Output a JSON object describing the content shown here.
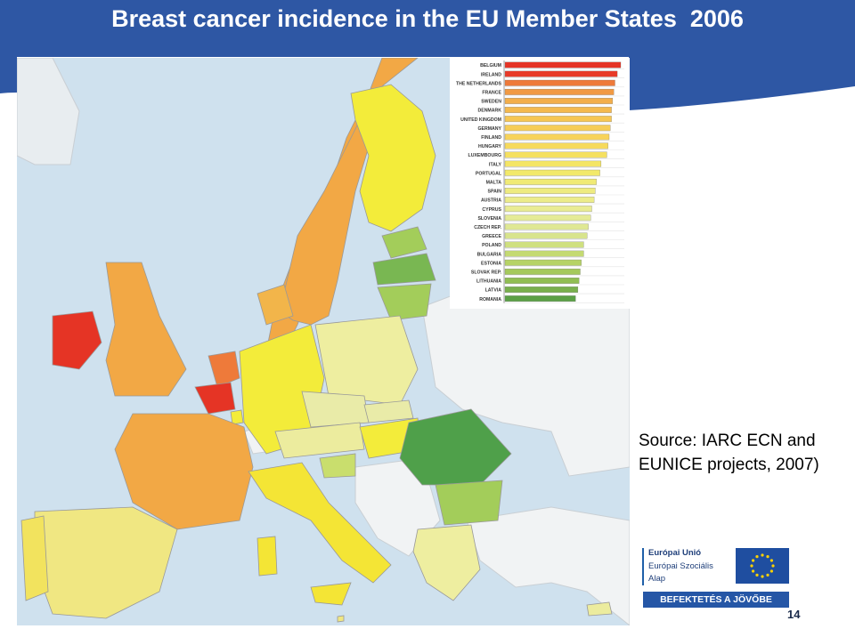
{
  "slide": {
    "title": "Breast cancer incidence in the EU Member States  2006",
    "source": "Source: IARC ECN and EUNICE projects, 2007)",
    "page_number": "14"
  },
  "logo": {
    "line1": "Európai Unió",
    "line2": "Európai Szociális",
    "line3": "Alap",
    "slogan": "BEFEKTETÉS A JÖVŐBE",
    "flag_icon": "eu-flag-icon"
  },
  "colors": {
    "banner": "#2e57a4",
    "map_water": "#cfe1ee",
    "non_eu_land": "#f1f3f4"
  },
  "chart_data": {
    "type": "bar",
    "orientation": "horizontal",
    "categories": [
      "BELGIUM",
      "IRELAND",
      "THE NETHERLANDS",
      "FRANCE",
      "SWEDEN",
      "DENMARK",
      "UNITED KINGDOM",
      "GERMANY",
      "FINLAND",
      "HUNGARY",
      "LUXEMBOURG",
      "ITALY",
      "PORTUGAL",
      "MALTA",
      "SPAIN",
      "AUSTRIA",
      "CYPRUS",
      "SLOVENIA",
      "CZECH REP.",
      "GREECE",
      "POLAND",
      "BULGARIA",
      "ESTONIA",
      "SLOVAK REP.",
      "LITHUANIA",
      "LATVIA",
      "ROMANIA"
    ],
    "values": [
      100,
      97,
      95,
      94,
      93,
      92,
      92,
      91,
      90,
      89,
      88,
      83,
      82,
      79,
      78,
      77,
      75,
      74,
      72,
      71,
      68,
      68,
      66,
      65,
      64,
      63,
      61
    ],
    "colors": [
      "#e53425",
      "#e83a28",
      "#ee7a3a",
      "#f19a43",
      "#f3ae4a",
      "#f4b94e",
      "#f6c653",
      "#f6cd57",
      "#f7d35a",
      "#f6da5d",
      "#f5e060",
      "#f4e565",
      "#f2e96a",
      "#f0ea75",
      "#eeeb80",
      "#ecec8a",
      "#e9ec93",
      "#e5eb96",
      "#dfe894",
      "#d8e48d",
      "#cfe07f",
      "#c4da72",
      "#b6d366",
      "#a5c95c",
      "#91be53",
      "#79b04d",
      "#5ba046"
    ],
    "title": "",
    "xlabel": "",
    "ylabel": "",
    "xlim": [
      0,
      100
    ],
    "grid": true,
    "legend": "none"
  },
  "map": {
    "countries": [
      {
        "name": "Ireland",
        "fill": "#e53425"
      },
      {
        "name": "United Kingdom",
        "fill": "#f2a845"
      },
      {
        "name": "Belgium",
        "fill": "#e53425"
      },
      {
        "name": "Netherlands",
        "fill": "#ee7a3a"
      },
      {
        "name": "France",
        "fill": "#f2a845"
      },
      {
        "name": "Spain",
        "fill": "#f0e782"
      },
      {
        "name": "Portugal",
        "fill": "#f2e35e"
      },
      {
        "name": "Italy",
        "fill": "#f4e535"
      },
      {
        "name": "Germany",
        "fill": "#f3ec3a"
      },
      {
        "name": "Denmark",
        "fill": "#f2b54a"
      },
      {
        "name": "Norway",
        "fill": "#f2a845"
      },
      {
        "name": "Sweden",
        "fill": "#f2a845"
      },
      {
        "name": "Finland",
        "fill": "#f3ec3a"
      },
      {
        "name": "Poland",
        "fill": "#eeeea0"
      },
      {
        "name": "Czech Rep.",
        "fill": "#e9eba8"
      },
      {
        "name": "Slovak Rep.",
        "fill": "#e9eba8"
      },
      {
        "name": "Austria",
        "fill": "#ecec9e"
      },
      {
        "name": "Hungary",
        "fill": "#f3ec3a"
      },
      {
        "name": "Slovenia",
        "fill": "#c9de6d"
      },
      {
        "name": "Romania",
        "fill": "#4fa04a"
      },
      {
        "name": "Bulgaria",
        "fill": "#a3cd5a"
      },
      {
        "name": "Greece",
        "fill": "#eeeea0"
      },
      {
        "name": "Estonia",
        "fill": "#a3cd5a"
      },
      {
        "name": "Latvia",
        "fill": "#79b752"
      },
      {
        "name": "Lithuania",
        "fill": "#a3cd5a"
      },
      {
        "name": "Cyprus",
        "fill": "#ecec9e"
      },
      {
        "name": "Malta",
        "fill": "#f0e782"
      },
      {
        "name": "Luxembourg",
        "fill": "#f3ec3a"
      }
    ]
  }
}
